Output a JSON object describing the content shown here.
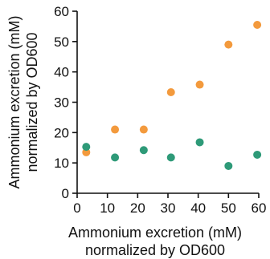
{
  "chart_data": {
    "type": "scatter",
    "xlabel": [
      "Ammonium excretion (mM)",
      "normalized by OD600"
    ],
    "ylabel": [
      "Ammonium excretion (mM)",
      "normalized by OD600"
    ],
    "xlim": [
      0,
      60
    ],
    "ylim": [
      0,
      60
    ],
    "xticks": [
      "0",
      "10",
      "20",
      "30",
      "40",
      "50",
      "60"
    ],
    "yticks": [
      "0",
      "10",
      "20",
      "30",
      "40",
      "50",
      "60"
    ],
    "grid": false,
    "legend": "none",
    "series": [
      {
        "color": "#F39A3D",
        "points": [
          {
            "x": 3,
            "y": 13.5
          },
          {
            "x": 12.5,
            "y": 21
          },
          {
            "x": 22,
            "y": 21
          },
          {
            "x": 31,
            "y": 33.3
          },
          {
            "x": 40.5,
            "y": 35.8
          },
          {
            "x": 50,
            "y": 49
          },
          {
            "x": 59.5,
            "y": 55.5
          }
        ]
      },
      {
        "color": "#2E9A78",
        "points": [
          {
            "x": 3,
            "y": 15.3
          },
          {
            "x": 12.5,
            "y": 11.8
          },
          {
            "x": 22,
            "y": 14.2
          },
          {
            "x": 31,
            "y": 11.8
          },
          {
            "x": 40.5,
            "y": 16.8
          },
          {
            "x": 50,
            "y": 9
          },
          {
            "x": 59.5,
            "y": 12.7
          }
        ]
      }
    ]
  }
}
